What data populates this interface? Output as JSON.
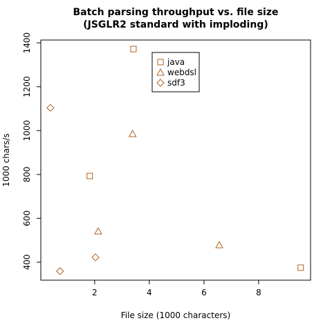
{
  "chart_data": {
    "type": "scatter",
    "title": "Batch parsing throughput vs. file size",
    "subtitle": "(JSGLR2 standard with imploding)",
    "x_label": "File size (1000 characters)",
    "y_label": "1000 chars/s",
    "series": [
      {
        "name": "java",
        "color": "#b0601f",
        "marker": "square",
        "x": [
          3.42,
          1.82,
          9.54
        ],
        "values": [
          1372,
          793,
          375
        ]
      },
      {
        "name": "webdsl",
        "color": "#b0601f",
        "marker": "triangle",
        "x": [
          3.39,
          2.13,
          6.56
        ],
        "values": [
          985,
          541,
          478
        ]
      },
      {
        "name": "sdf3",
        "color": "#b0601f",
        "marker": "diamond",
        "x": [
          0.38,
          0.73,
          2.03
        ],
        "values": [
          1104,
          359,
          422
        ]
      }
    ],
    "xlim": [
      0.03,
      9.9
    ],
    "ylim": [
      318,
      1413
    ],
    "xticks": [
      2,
      4,
      6,
      8
    ],
    "yticks": [
      400,
      600,
      800,
      1000,
      1200,
      1400
    ],
    "legend": "top",
    "grid": false
  }
}
